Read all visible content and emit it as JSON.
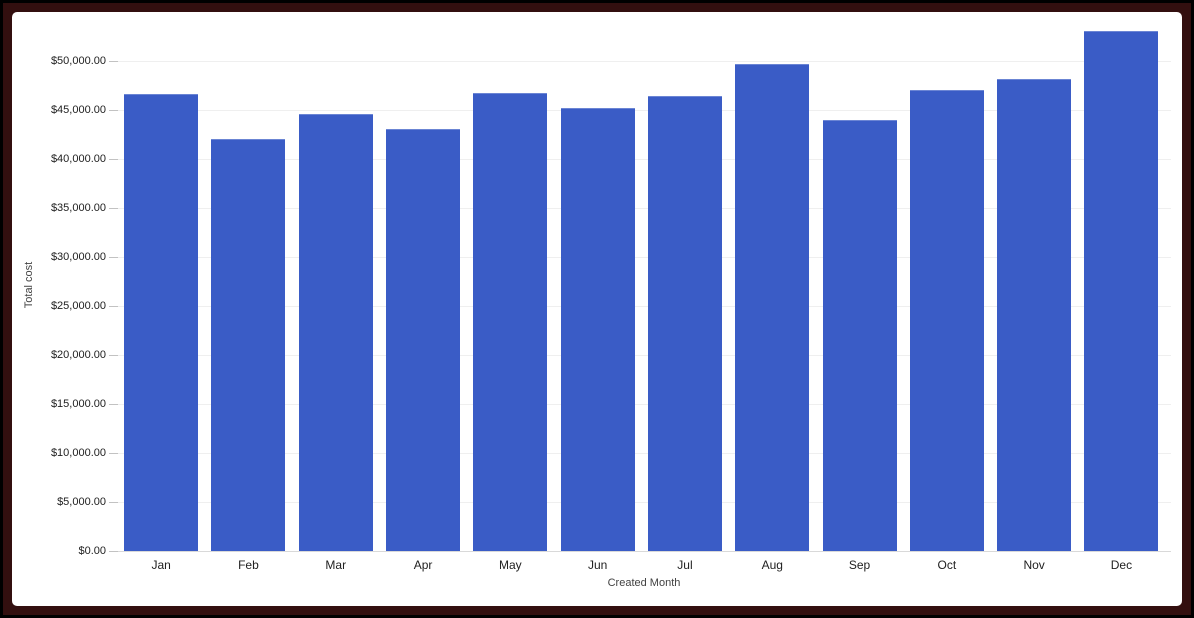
{
  "chart_data": {
    "type": "bar",
    "title": "",
    "xlabel": "Created Month",
    "ylabel": "Total cost",
    "categories": [
      "Jan",
      "Feb",
      "Mar",
      "Apr",
      "May",
      "Jun",
      "Jul",
      "Aug",
      "Sep",
      "Oct",
      "Nov",
      "Dec"
    ],
    "values": [
      46600,
      42000,
      44600,
      43000,
      46700,
      45200,
      46400,
      49700,
      44000,
      47000,
      48100,
      53000
    ],
    "series_name": "Total cost",
    "ylim": [
      0,
      54000
    ],
    "ytick_values": [
      0,
      5000,
      10000,
      15000,
      20000,
      25000,
      30000,
      35000,
      40000,
      45000,
      50000
    ],
    "ytick_labels": [
      "$0.00",
      "$5,000.00",
      "$10,000.00",
      "$15,000.00",
      "$20,000.00",
      "$25,000.00",
      "$30,000.00",
      "$35,000.00",
      "$40,000.00",
      "$45,000.00",
      "$50,000.00"
    ],
    "grid": true,
    "legend_position": "none",
    "bar_color": "#3A5CC6",
    "colors": {
      "gridline": "#EFEFEF",
      "axis_line": "#D9D9D9",
      "tick_text": "#212121",
      "axis_title_text": "#424242",
      "frame_outer": "#000000",
      "frame_inner": "#330F0F",
      "background": "#FFFFFF"
    }
  }
}
